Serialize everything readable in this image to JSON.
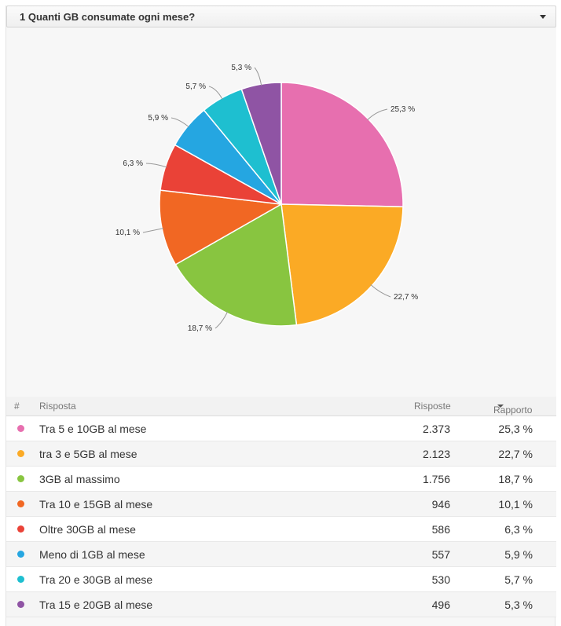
{
  "question": {
    "title": "1 Quanti GB consumate ogni mese?"
  },
  "table": {
    "headers": {
      "hash": "#",
      "answer": "Risposta",
      "count": "Risposte",
      "ratio": "Rapporto"
    },
    "rows": [
      {
        "answer": "Tra 5 e 10GB al mese",
        "count": "2.373",
        "ratio": "25,3 %"
      },
      {
        "answer": "tra 3 e 5GB al mese",
        "count": "2.123",
        "ratio": "22,7 %"
      },
      {
        "answer": "3GB al massimo",
        "count": "1.756",
        "ratio": "18,7 %"
      },
      {
        "answer": "Tra 10 e 15GB al mese",
        "count": "946",
        "ratio": "10,1 %"
      },
      {
        "answer": "Oltre 30GB al mese",
        "count": "586",
        "ratio": "6,3 %"
      },
      {
        "answer": "Meno di 1GB al mese",
        "count": "557",
        "ratio": "5,9 %"
      },
      {
        "answer": "Tra 20 e 30GB al mese",
        "count": "530",
        "ratio": "5,7 %"
      },
      {
        "answer": "Tra 15 e 20GB al mese",
        "count": "496",
        "ratio": "5,3 %"
      }
    ]
  },
  "chart_data": {
    "type": "pie",
    "title": "",
    "categories": [
      "Tra 5 e 10GB al mese",
      "tra 3 e 5GB al mese",
      "3GB al massimo",
      "Tra 10 e 15GB al mese",
      "Oltre 30GB al mese",
      "Meno di 1GB al mese",
      "Tra 20 e 30GB al mese",
      "Tra 15 e 20GB al mese"
    ],
    "values": [
      2373,
      2123,
      1756,
      946,
      586,
      557,
      530,
      496
    ],
    "labels": [
      "25,3 %",
      "22,7 %",
      "18,7 %",
      "10,1 %",
      "6,3 %",
      "5,9 %",
      "5,7 %",
      "5,3 %"
    ],
    "colors": [
      "#e76faf",
      "#fbaa25",
      "#88c540",
      "#f16723",
      "#ea4237",
      "#25a6e1",
      "#1ebfd0",
      "#8f54a4"
    ],
    "start": "12 o'clock",
    "direction": "clockwise"
  }
}
